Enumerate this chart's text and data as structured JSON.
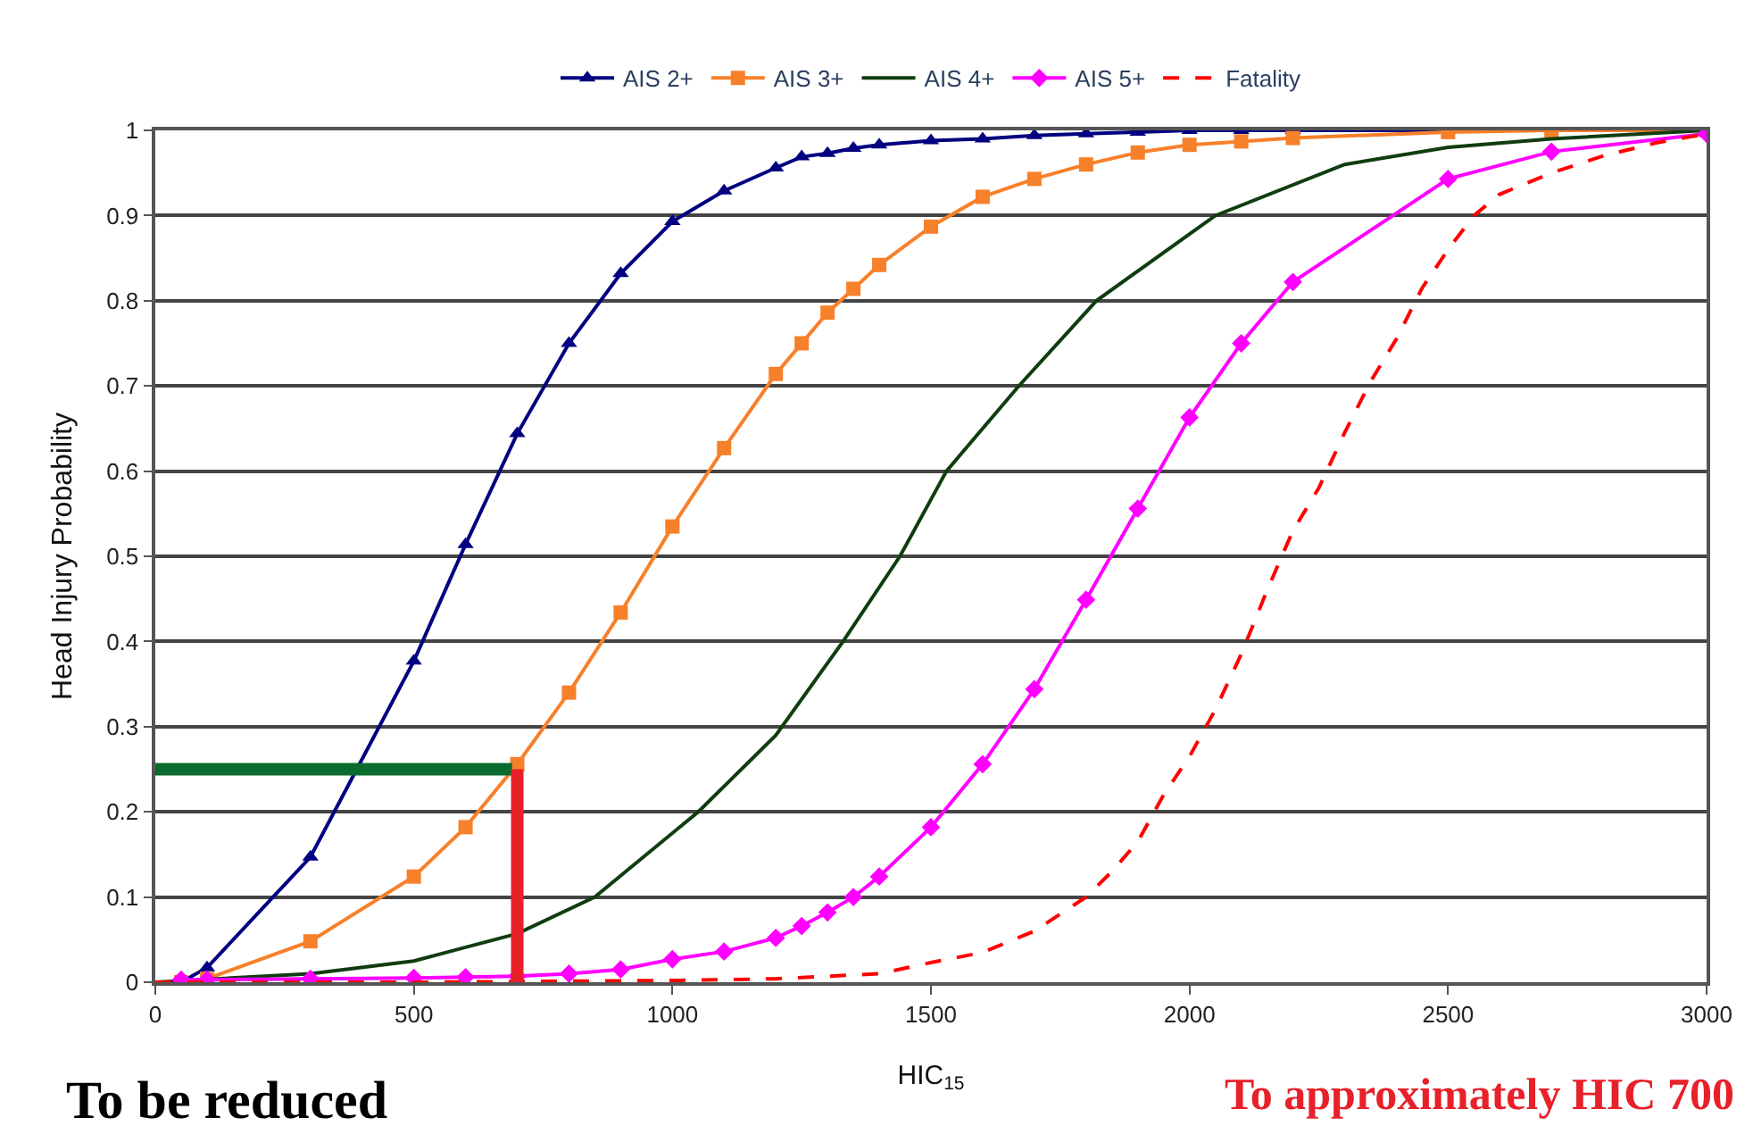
{
  "chart_data": {
    "type": "line",
    "xlabel": "HIC$_{15}$",
    "ylabel": "Head Injury Probability",
    "xlim": [
      0,
      3000
    ],
    "xticks": [
      0,
      500,
      1000,
      1500,
      2000,
      2500,
      3000
    ],
    "ylim": [
      0,
      1
    ],
    "yticks": [
      0,
      0.1,
      0.2,
      0.3,
      0.4,
      0.5,
      0.6,
      0.7,
      0.8,
      0.9,
      1
    ],
    "grid": "y",
    "legend": "top",
    "annotations": [
      "To be reduced",
      "To approximately HIC 700"
    ],
    "series": [
      {
        "name": "AIS 2+",
        "color": "#000080",
        "marker": "triangle",
        "line_style": "solid",
        "x": [
          50,
          100,
          300,
          500,
          600,
          700,
          800,
          900,
          1000,
          1100,
          1200,
          1250,
          1300,
          1350,
          1400,
          1500,
          1600,
          1700,
          1800,
          1900,
          2000,
          2100,
          2200,
          2500,
          3000
        ],
        "values": [
          0,
          0.017,
          0.147,
          0.377,
          0.514,
          0.644,
          0.75,
          0.832,
          0.893,
          0.929,
          0.956,
          0.969,
          0.973,
          0.979,
          0.983,
          0.988,
          0.99,
          0.994,
          0.996,
          0.998,
          1,
          1,
          1,
          1,
          1
        ]
      },
      {
        "name": "AIS 3+",
        "color": "#f7802a",
        "marker": "square",
        "line_style": "solid",
        "x": [
          50,
          100,
          300,
          500,
          600,
          700,
          800,
          900,
          1000,
          1100,
          1200,
          1250,
          1300,
          1350,
          1400,
          1500,
          1600,
          1700,
          1800,
          1900,
          2000,
          2100,
          2200,
          2500,
          2700,
          3000
        ],
        "values": [
          0,
          0.004,
          0.048,
          0.124,
          0.182,
          0.256,
          0.34,
          0.434,
          0.535,
          0.627,
          0.714,
          0.75,
          0.786,
          0.814,
          0.842,
          0.887,
          0.922,
          0.943,
          0.96,
          0.974,
          0.983,
          0.987,
          0.991,
          0.998,
          1,
          1
        ]
      },
      {
        "name": "AIS 4+",
        "color": "#103d10",
        "marker": "none",
        "line_style": "solid",
        "x": [
          0,
          300,
          500,
          700,
          850,
          1050,
          1200,
          1330,
          1440,
          1530,
          1670,
          1820,
          2050,
          2300,
          2500,
          2700,
          3000
        ],
        "values": [
          0,
          0.01,
          0.025,
          0.057,
          0.1,
          0.2,
          0.29,
          0.4,
          0.5,
          0.6,
          0.7,
          0.8,
          0.9,
          0.96,
          0.98,
          0.99,
          1
        ]
      },
      {
        "name": "AIS 5+",
        "color": "#ff00ff",
        "marker": "diamond",
        "line_style": "solid",
        "x": [
          50,
          100,
          300,
          500,
          600,
          700,
          800,
          900,
          1000,
          1100,
          1200,
          1250,
          1300,
          1350,
          1400,
          1500,
          1600,
          1700,
          1800,
          1900,
          2000,
          2100,
          2200,
          2500,
          2700,
          3000
        ],
        "values": [
          0.003,
          0.003,
          0.004,
          0.005,
          0.006,
          0.007,
          0.01,
          0.015,
          0.027,
          0.036,
          0.052,
          0.066,
          0.082,
          0.1,
          0.124,
          0.182,
          0.256,
          0.344,
          0.449,
          0.556,
          0.663,
          0.75,
          0.822,
          0.943,
          0.975,
          0.996
        ]
      },
      {
        "name": "Fatality",
        "color": "#ff0000",
        "marker": "none",
        "line_style": "dashed",
        "x": [
          0,
          500,
          1000,
          1200,
          1400,
          1500,
          1600,
          1700,
          1800,
          1850,
          1900,
          1950,
          2000,
          2050,
          2100,
          2150,
          2200,
          2250,
          2300,
          2350,
          2400,
          2450,
          2500,
          2550,
          2600,
          2700,
          2800,
          2900,
          3000
        ],
        "values": [
          0,
          0,
          0.002,
          0.004,
          0.01,
          0.023,
          0.035,
          0.06,
          0.1,
          0.13,
          0.165,
          0.22,
          0.265,
          0.32,
          0.385,
          0.46,
          0.53,
          0.58,
          0.645,
          0.705,
          0.755,
          0.815,
          0.86,
          0.9,
          0.925,
          0.95,
          0.97,
          0.985,
          0.996
        ]
      },
      {
        "color": "#0a6b2e",
        "marker": "none",
        "line_style": "solid",
        "x": [
          0,
          690
        ],
        "values": [
          0.25,
          0.25
        ]
      },
      {
        "color": "#e8202a",
        "marker": "none",
        "line_style": "solid",
        "x": [
          700,
          700
        ],
        "values": [
          0,
          0.25
        ]
      }
    ]
  }
}
